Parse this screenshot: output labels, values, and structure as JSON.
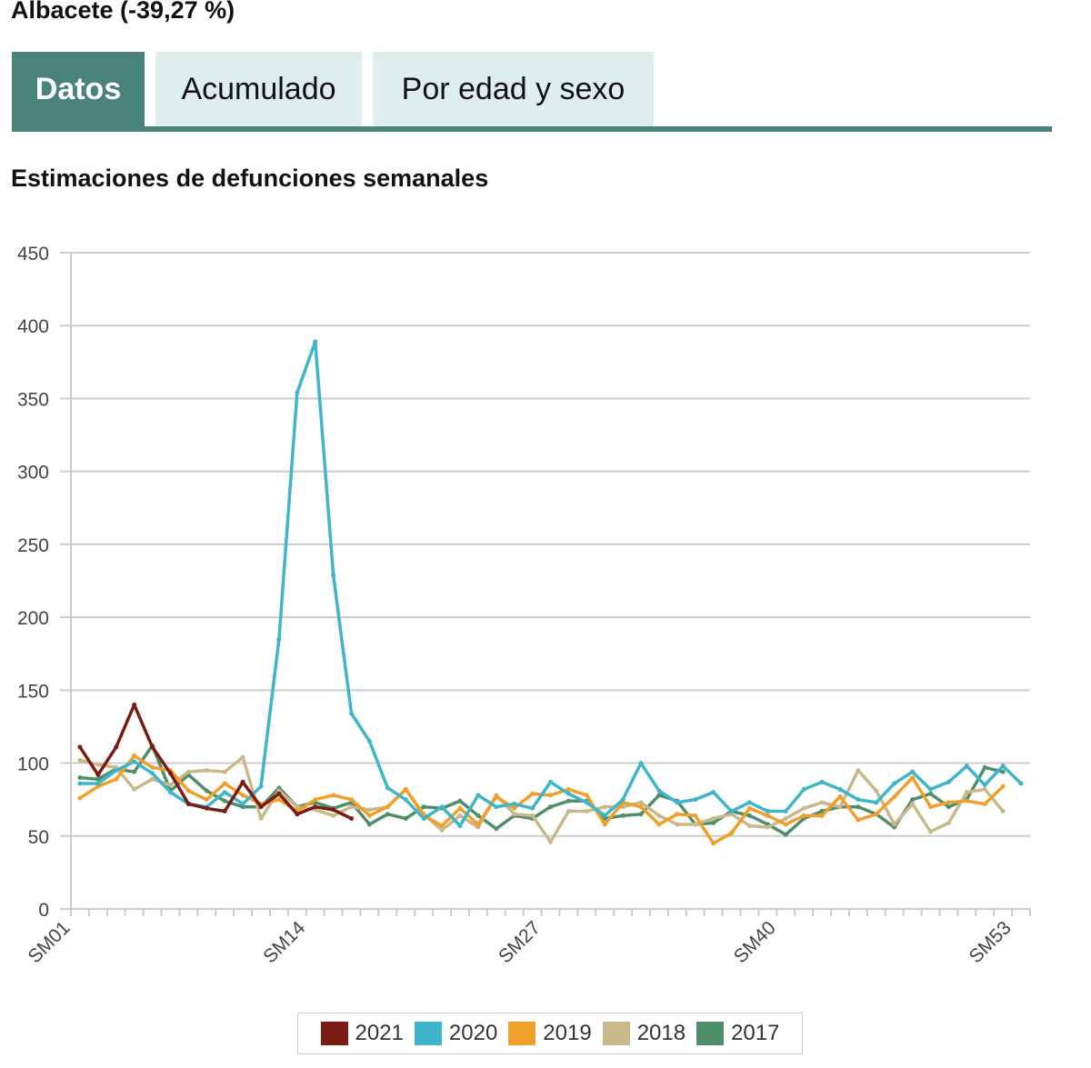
{
  "title": "Albacete (-39,27 %)",
  "tabs": [
    {
      "label": "Datos",
      "active": true
    },
    {
      "label": "Acumulado"
    },
    {
      "label": "Por edad y sexo"
    }
  ],
  "colors": {
    "tab_active": "#4a8478",
    "tab_inactive": "#ddeeed"
  },
  "chart_data": {
    "type": "line",
    "title": "Estimaciones de defunciones semanales",
    "ylim": [
      0,
      450
    ],
    "yticks": [
      0,
      50,
      100,
      150,
      200,
      250,
      300,
      350,
      400,
      450
    ],
    "xtick_labels": [
      "SM01",
      "SM14",
      "SM27",
      "SM40",
      "SM53"
    ],
    "weeks": 53,
    "grid": true,
    "legend": "bottom",
    "series": [
      {
        "name": "2021",
        "color": "#7a1c14",
        "values": [
          111,
          92,
          111,
          140,
          111,
          93,
          72,
          69,
          67,
          87,
          70,
          79,
          65,
          70,
          68,
          62
        ]
      },
      {
        "name": "2020",
        "color": "#3fb5c9",
        "values": [
          86,
          86,
          95,
          101,
          93,
          80,
          72,
          70,
          80,
          72,
          84,
          185,
          354,
          389,
          229,
          134,
          115,
          83,
          75,
          62,
          70,
          57,
          78,
          70,
          72,
          69,
          87,
          79,
          73,
          64,
          75,
          100,
          81,
          73,
          75,
          80,
          67,
          73,
          67,
          67,
          82,
          87,
          82,
          75,
          73,
          86,
          94,
          82,
          87,
          98,
          85,
          98,
          86
        ]
      },
      {
        "name": "2019",
        "color": "#f0a02a",
        "values": [
          76,
          84,
          89,
          105,
          97,
          95,
          81,
          75,
          86,
          78,
          72,
          75,
          67,
          75,
          78,
          75,
          64,
          70,
          82,
          64,
          57,
          69,
          58,
          77,
          69,
          79,
          78,
          82,
          78,
          58,
          73,
          70,
          58,
          65,
          64,
          45,
          52,
          69,
          64,
          58,
          64,
          64,
          77,
          61,
          65,
          77,
          90,
          70,
          73,
          74,
          72,
          84
        ]
      },
      {
        "name": "2018",
        "color": "#c9b98a",
        "values": [
          102,
          99,
          97,
          82,
          89,
          85,
          94,
          95,
          94,
          104,
          62,
          81,
          70,
          68,
          64,
          70,
          68,
          70,
          82,
          65,
          54,
          64,
          56,
          78,
          65,
          64,
          46,
          67,
          67,
          70,
          70,
          73,
          64,
          58,
          58,
          62,
          65,
          57,
          56,
          62,
          69,
          73,
          70,
          95,
          81,
          58,
          72,
          53,
          59,
          80,
          82,
          67
        ]
      },
      {
        "name": "2017",
        "color": "#4e8f6a",
        "values": [
          90,
          89,
          96,
          94,
          112,
          81,
          92,
          81,
          74,
          70,
          70,
          83,
          70,
          73,
          69,
          73,
          58,
          65,
          62,
          70,
          69,
          74,
          64,
          55,
          64,
          62,
          70,
          74,
          74,
          62,
          64,
          65,
          78,
          74,
          58,
          59,
          67,
          64,
          58,
          51,
          62,
          67,
          70,
          70,
          65,
          56,
          75,
          79,
          70,
          75,
          97,
          94
        ]
      }
    ]
  }
}
